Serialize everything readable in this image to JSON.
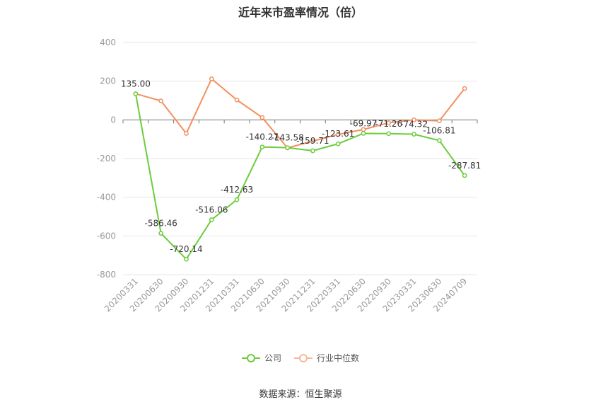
{
  "title": "近年来市盈率情况（倍）",
  "source": "数据来源：恒生聚源",
  "colors": {
    "company": "#6ccc3c",
    "industry": "#f39060"
  },
  "chart_data": {
    "type": "line",
    "categories": [
      "20200331",
      "20200630",
      "20200930",
      "20201231",
      "20210331",
      "20210630",
      "20210930",
      "20211231",
      "20220331",
      "20220630",
      "20220930",
      "20230331",
      "20230630",
      "20240709"
    ],
    "ylim": [
      -800,
      400
    ],
    "yticks": [
      400,
      200,
      0,
      -200,
      -400,
      -600,
      -800
    ],
    "grid": true,
    "legend_position": "bottom",
    "series": [
      {
        "name": "公司",
        "values": [
          135.0,
          -586.46,
          -720.14,
          -516.06,
          -412.63,
          -140.27,
          -143.58,
          -159.71,
          -123.61,
          -69.97,
          -71.26,
          -74.32,
          -106.81,
          -287.81
        ],
        "labels": [
          "135.00",
          "-586.46",
          "-720.14",
          "-516.06",
          "-412.63",
          "-140.27",
          "-143.58",
          "-159.71",
          "-123.61",
          "-69.97",
          "-71.26",
          "-74.32",
          "-106.81",
          "-287.81"
        ]
      },
      {
        "name": "行业中位数",
        "values": [
          135.0,
          98,
          -70,
          212,
          103,
          12,
          -145,
          -110,
          -75,
          -50,
          -15,
          0,
          -5,
          162
        ]
      }
    ]
  }
}
